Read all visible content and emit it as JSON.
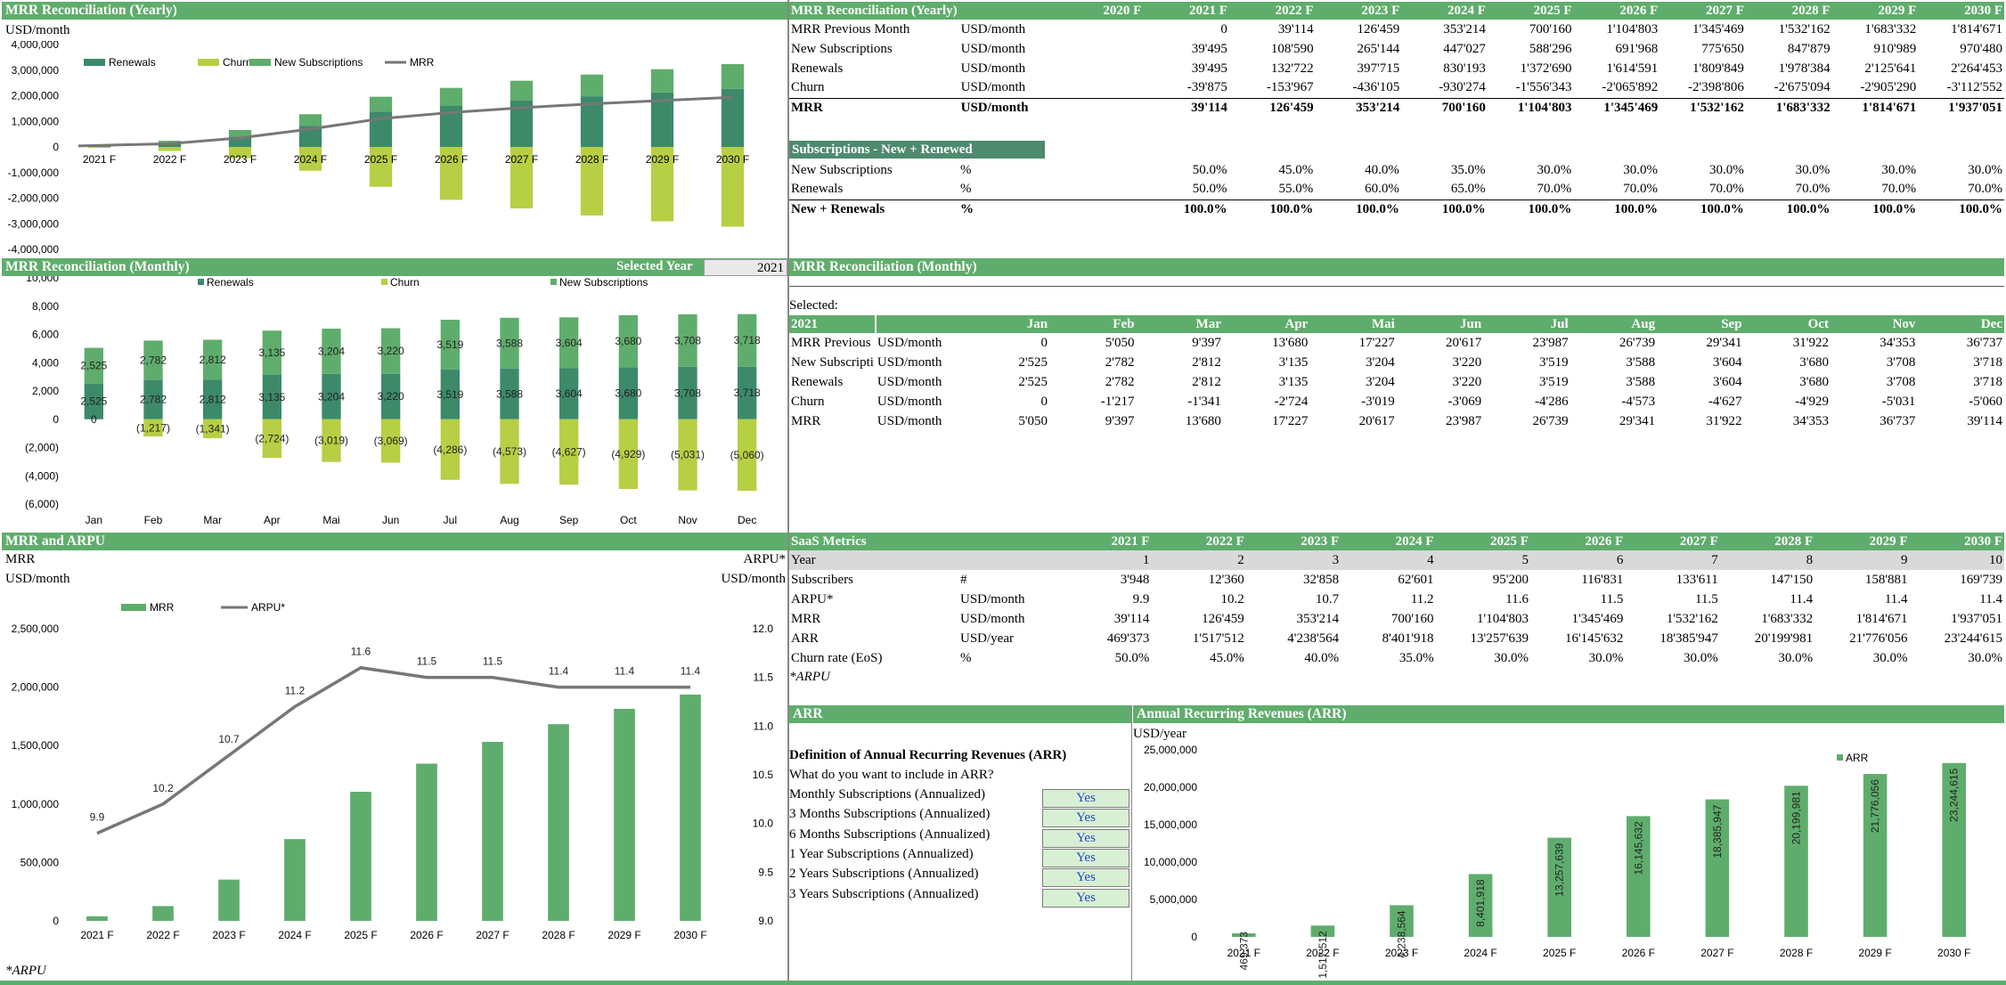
{
  "colors": {
    "header_green": "#5fad6c",
    "dark_green": "#3c8a6a",
    "lime": "#b6cf44",
    "mid_green": "#5fad6c",
    "grey_line": "#777777"
  },
  "yearly_chart": {
    "title": "MRR Reconciliation (Yearly)",
    "unit": "USD/month",
    "legend": [
      "Renewals",
      "Churn",
      "New Subscriptions",
      "MRR"
    ],
    "y_ticks": [
      "4,000,000",
      "3,000,000",
      "2,000,000",
      "1,000,000",
      "0",
      "-1,000,000",
      "-2,000,000",
      "-3,000,000",
      "-4,000,000"
    ]
  },
  "yearly_table": {
    "title": "MRR Reconciliation (Yearly)",
    "years": [
      "2020 F",
      "2021 F",
      "2022 F",
      "2023 F",
      "2024 F",
      "2025 F",
      "2026 F",
      "2027 F",
      "2028 F",
      "2029 F",
      "2030 F"
    ],
    "rows": [
      {
        "label": "MRR Previous Month",
        "unit": "USD/month",
        "values": [
          "",
          "0",
          "39'114",
          "126'459",
          "353'214",
          "700'160",
          "1'104'803",
          "1'345'469",
          "1'532'162",
          "1'683'332",
          "1'814'671"
        ]
      },
      {
        "label": "New Subscriptions",
        "unit": "USD/month",
        "values": [
          "",
          "39'495",
          "108'590",
          "265'144",
          "447'027",
          "588'296",
          "691'968",
          "775'650",
          "847'879",
          "910'989",
          "970'480"
        ]
      },
      {
        "label": "Renewals",
        "unit": "USD/month",
        "values": [
          "",
          "39'495",
          "132'722",
          "397'715",
          "830'193",
          "1'372'690",
          "1'614'591",
          "1'809'849",
          "1'978'384",
          "2'125'641",
          "2'264'453"
        ]
      },
      {
        "label": "Churn",
        "unit": "USD/month",
        "values": [
          "",
          "-39'875",
          "-153'967",
          "-436'105",
          "-930'274",
          "-1'556'343",
          "-2'065'892",
          "-2'398'806",
          "-2'675'094",
          "-2'905'290",
          "-3'112'552"
        ]
      },
      {
        "label": "MRR",
        "unit": "USD/month",
        "values": [
          "",
          "39'114",
          "126'459",
          "353'214",
          "700'160",
          "1'104'803",
          "1'345'469",
          "1'532'162",
          "1'683'332",
          "1'814'671",
          "1'937'051"
        ]
      }
    ],
    "subs_section": "Subscriptions - New + Renewed",
    "subs_rows": [
      {
        "label": "New Subscriptions",
        "unit": "%",
        "values": [
          "",
          "50.0%",
          "45.0%",
          "40.0%",
          "35.0%",
          "30.0%",
          "30.0%",
          "30.0%",
          "30.0%",
          "30.0%",
          "30.0%"
        ]
      },
      {
        "label": "Renewals",
        "unit": "%",
        "values": [
          "",
          "50.0%",
          "55.0%",
          "60.0%",
          "65.0%",
          "70.0%",
          "70.0%",
          "70.0%",
          "70.0%",
          "70.0%",
          "70.0%"
        ]
      },
      {
        "label": "New + Renewals",
        "unit": "%",
        "values": [
          "",
          "100.0%",
          "100.0%",
          "100.0%",
          "100.0%",
          "100.0%",
          "100.0%",
          "100.0%",
          "100.0%",
          "100.0%",
          "100.0%"
        ]
      }
    ]
  },
  "monthly_chart": {
    "title": "MRR Reconciliation (Monthly)",
    "selected_year_label": "Selected Year",
    "selected_year": "2021",
    "legend": [
      "Renewals",
      "Churn",
      "New Subscriptions"
    ],
    "y_ticks": [
      "10,000",
      "8,000",
      "6,000",
      "4,000",
      "2,000",
      "0",
      "(2,000)",
      "(4,000)",
      "(6,000)"
    ]
  },
  "monthly_table": {
    "title": "MRR Reconciliation (Monthly)",
    "selected_label": "Selected:",
    "selected_year": "2021",
    "months": [
      "Jan",
      "Feb",
      "Mar",
      "Apr",
      "Mai",
      "Jun",
      "Jul",
      "Aug",
      "Sep",
      "Oct",
      "Nov",
      "Dec"
    ],
    "rows": [
      {
        "label": "MRR Previous",
        "unit": "USD/month",
        "values": [
          "0",
          "5'050",
          "9'397",
          "13'680",
          "17'227",
          "20'617",
          "23'987",
          "26'739",
          "29'341",
          "31'922",
          "34'353",
          "36'737"
        ]
      },
      {
        "label": "New Subscripti",
        "unit": "USD/month",
        "values": [
          "2'525",
          "2'782",
          "2'812",
          "3'135",
          "3'204",
          "3'220",
          "3'519",
          "3'588",
          "3'604",
          "3'680",
          "3'708",
          "3'718"
        ]
      },
      {
        "label": "Renewals",
        "unit": "USD/month",
        "values": [
          "2'525",
          "2'782",
          "2'812",
          "3'135",
          "3'204",
          "3'220",
          "3'519",
          "3'588",
          "3'604",
          "3'680",
          "3'708",
          "3'718"
        ]
      },
      {
        "label": "Churn",
        "unit": "USD/month",
        "values": [
          "0",
          "-1'217",
          "-1'341",
          "-2'724",
          "-3'019",
          "-3'069",
          "-4'286",
          "-4'573",
          "-4'627",
          "-4'929",
          "-5'031",
          "-5'060"
        ]
      },
      {
        "label": "MRR",
        "unit": "USD/month",
        "values": [
          "5'050",
          "9'397",
          "13'680",
          "17'227",
          "20'617",
          "23'987",
          "26'739",
          "29'341",
          "31'922",
          "34'353",
          "36'737",
          "39'114"
        ]
      }
    ]
  },
  "arpu_chart": {
    "title": "MRR and ARPU",
    "left_label": "MRR",
    "left_unit": "USD/month",
    "right_label": "ARPU*",
    "right_unit": "USD/month",
    "legend": [
      "MRR",
      "ARPU*"
    ],
    "y_ticks_left": [
      "2,500,000",
      "2,000,000",
      "1,500,000",
      "1,000,000",
      "500,000",
      "0"
    ],
    "y_ticks_right": [
      "12.0",
      "11.5",
      "11.0",
      "10.5",
      "10.0",
      "9.5",
      "9.0"
    ],
    "footnote": "*ARPU"
  },
  "saas": {
    "title": "SaaS Metrics",
    "years": [
      "2021 F",
      "2022 F",
      "2023 F",
      "2024 F",
      "2025 F",
      "2026 F",
      "2027 F",
      "2028 F",
      "2029 F",
      "2030 F"
    ],
    "rows": [
      {
        "label": "Year",
        "unit": "",
        "values": [
          "1",
          "2",
          "3",
          "4",
          "5",
          "6",
          "7",
          "8",
          "9",
          "10"
        ]
      },
      {
        "label": "Subscribers",
        "unit": "#",
        "values": [
          "3'948",
          "12'360",
          "32'858",
          "62'601",
          "95'200",
          "116'831",
          "133'611",
          "147'150",
          "158'881",
          "169'739"
        ]
      },
      {
        "label": "ARPU*",
        "unit": "USD/month",
        "values": [
          "9.9",
          "10.2",
          "10.7",
          "11.2",
          "11.6",
          "11.5",
          "11.5",
          "11.4",
          "11.4",
          "11.4"
        ]
      },
      {
        "label": "MRR",
        "unit": "USD/month",
        "values": [
          "39'114",
          "126'459",
          "353'214",
          "700'160",
          "1'104'803",
          "1'345'469",
          "1'532'162",
          "1'683'332",
          "1'814'671",
          "1'937'051"
        ]
      },
      {
        "label": "ARR",
        "unit": "USD/year",
        "values": [
          "469'373",
          "1'517'512",
          "4'238'564",
          "8'401'918",
          "13'257'639",
          "16'145'632",
          "18'385'947",
          "20'199'981",
          "21'776'056",
          "23'244'615"
        ]
      },
      {
        "label": "Churn rate (EoS)",
        "unit": "%",
        "values": [
          "50.0%",
          "45.0%",
          "40.0%",
          "35.0%",
          "30.0%",
          "30.0%",
          "30.0%",
          "30.0%",
          "30.0%",
          "30.0%"
        ]
      }
    ],
    "footnote": "*ARPU"
  },
  "arr_def": {
    "title": "ARR",
    "heading": "Definition of Annual Recurring Revenues (ARR)",
    "question": "What do you want to include in ARR?",
    "options": [
      {
        "label": "Monthly Subscriptions (Annualized)",
        "value": "Yes"
      },
      {
        "label": "3 Months Subscriptions (Annualized)",
        "value": "Yes"
      },
      {
        "label": "6 Months Subscriptions (Annualized)",
        "value": "Yes"
      },
      {
        "label": "1 Year Subscriptions (Annualized)",
        "value": "Yes"
      },
      {
        "label": "2 Years Subscriptions (Annualized)",
        "value": "Yes"
      },
      {
        "label": "3 Years Subscriptions (Annualized)",
        "value": "Yes"
      }
    ]
  },
  "arr_chart": {
    "title": "Annual Recurring Revenues (ARR)",
    "unit": "USD/year",
    "legend": [
      "ARR"
    ],
    "y_ticks": [
      "25,000,000",
      "20,000,000",
      "15,000,000",
      "10,000,000",
      "5,000,000",
      "0"
    ]
  },
  "chart_data": [
    {
      "type": "bar",
      "title": "MRR Reconciliation (Yearly)",
      "categories": [
        "2021 F",
        "2022 F",
        "2023 F",
        "2024 F",
        "2025 F",
        "2026 F",
        "2027 F",
        "2028 F",
        "2029 F",
        "2030 F"
      ],
      "ylim": [
        -4000000,
        4000000
      ],
      "legend": "top-left",
      "series": [
        {
          "name": "Renewals",
          "values": [
            39495,
            132722,
            397715,
            830193,
            1372690,
            1614591,
            1809849,
            1978384,
            2125641,
            2264453
          ]
        },
        {
          "name": "Churn",
          "values": [
            -39875,
            -153967,
            -436105,
            -930274,
            -1556343,
            -2065892,
            -2398806,
            -2675094,
            -2905290,
            -3112552
          ]
        },
        {
          "name": "New Subscriptions",
          "values": [
            39495,
            108590,
            265144,
            447027,
            588296,
            691968,
            775650,
            847879,
            910989,
            970480
          ]
        },
        {
          "name": "MRR",
          "type": "line",
          "values": [
            39114,
            126459,
            353214,
            700160,
            1104803,
            1345469,
            1532162,
            1683332,
            1814671,
            1937051
          ]
        }
      ]
    },
    {
      "type": "bar",
      "title": "MRR Reconciliation (Monthly)",
      "categories": [
        "Jan",
        "Feb",
        "Mar",
        "Apr",
        "Mai",
        "Jun",
        "Jul",
        "Aug",
        "Sep",
        "Oct",
        "Nov",
        "Dec"
      ],
      "ylim": [
        -6000,
        10000
      ],
      "legend": "top",
      "series": [
        {
          "name": "Renewals",
          "values": [
            2525,
            2782,
            2812,
            3135,
            3204,
            3220,
            3519,
            3588,
            3604,
            3680,
            3708,
            3718
          ]
        },
        {
          "name": "Churn",
          "values": [
            0,
            -1217,
            -1341,
            -2724,
            -3019,
            -3069,
            -4286,
            -4573,
            -4627,
            -4929,
            -5031,
            -5060
          ]
        },
        {
          "name": "New Subscriptions",
          "values": [
            2525,
            2782,
            2812,
            3135,
            3204,
            3220,
            3519,
            3588,
            3604,
            3680,
            3708,
            3718
          ]
        }
      ],
      "data_labels": {
        "renewals": [
          "2,525",
          "2,782",
          "2,812",
          "3,135",
          "3,204",
          "3,220",
          "3,519",
          "3,588",
          "3,604",
          "3,680",
          "3,708",
          "3,718"
        ],
        "new": [
          "2,525",
          "2,782",
          "2,812",
          "3,135",
          "3,204",
          "3,220",
          "3,519",
          "3,588",
          "3,604",
          "3,680",
          "3,708",
          "3,718"
        ],
        "churn": [
          "0",
          "(1,217)",
          "(1,341)",
          "(2,724)",
          "(3,019)",
          "(3,069)",
          "(4,286)",
          "(4,573)",
          "(4,627)",
          "(4,929)",
          "(5,031)",
          "(5,060)"
        ]
      }
    },
    {
      "type": "bar",
      "title": "MRR and ARPU",
      "categories": [
        "2021 F",
        "2022 F",
        "2023 F",
        "2024 F",
        "2025 F",
        "2026 F",
        "2027 F",
        "2028 F",
        "2029 F",
        "2030 F"
      ],
      "ylim": [
        0,
        2500000
      ],
      "y2lim": [
        9.0,
        12.0
      ],
      "legend": "top",
      "series": [
        {
          "name": "MRR",
          "values": [
            39114,
            126459,
            353214,
            700160,
            1104803,
            1345469,
            1532162,
            1683332,
            1814671,
            1937051
          ]
        },
        {
          "name": "ARPU*",
          "type": "line",
          "axis": "right",
          "values": [
            9.9,
            10.2,
            10.7,
            11.2,
            11.6,
            11.5,
            11.5,
            11.4,
            11.4,
            11.4
          ],
          "labels": [
            "9.9",
            "10.2",
            "10.7",
            "11.2",
            "11.6",
            "11.5",
            "11.5",
            "11.4",
            "11.4",
            "11.4"
          ]
        }
      ]
    },
    {
      "type": "bar",
      "title": "Annual Recurring Revenues (ARR)",
      "categories": [
        "2021 F",
        "2022 F",
        "2023 F",
        "2024 F",
        "2025 F",
        "2026 F",
        "2027 F",
        "2028 F",
        "2029 F",
        "2030 F"
      ],
      "ylim": [
        0,
        25000000
      ],
      "legend": "top-right",
      "series": [
        {
          "name": "ARR",
          "values": [
            469373,
            1517512,
            4238564,
            8401918,
            13257639,
            16145632,
            18385947,
            20199981,
            21776056,
            23244615
          ],
          "labels": [
            "469,373",
            "1,517,512",
            "4,238,564",
            "8,401,918",
            "13,257,639",
            "16,145,632",
            "18,385,947",
            "20,199,981",
            "21,776,056",
            "23,244,615"
          ]
        }
      ]
    }
  ]
}
